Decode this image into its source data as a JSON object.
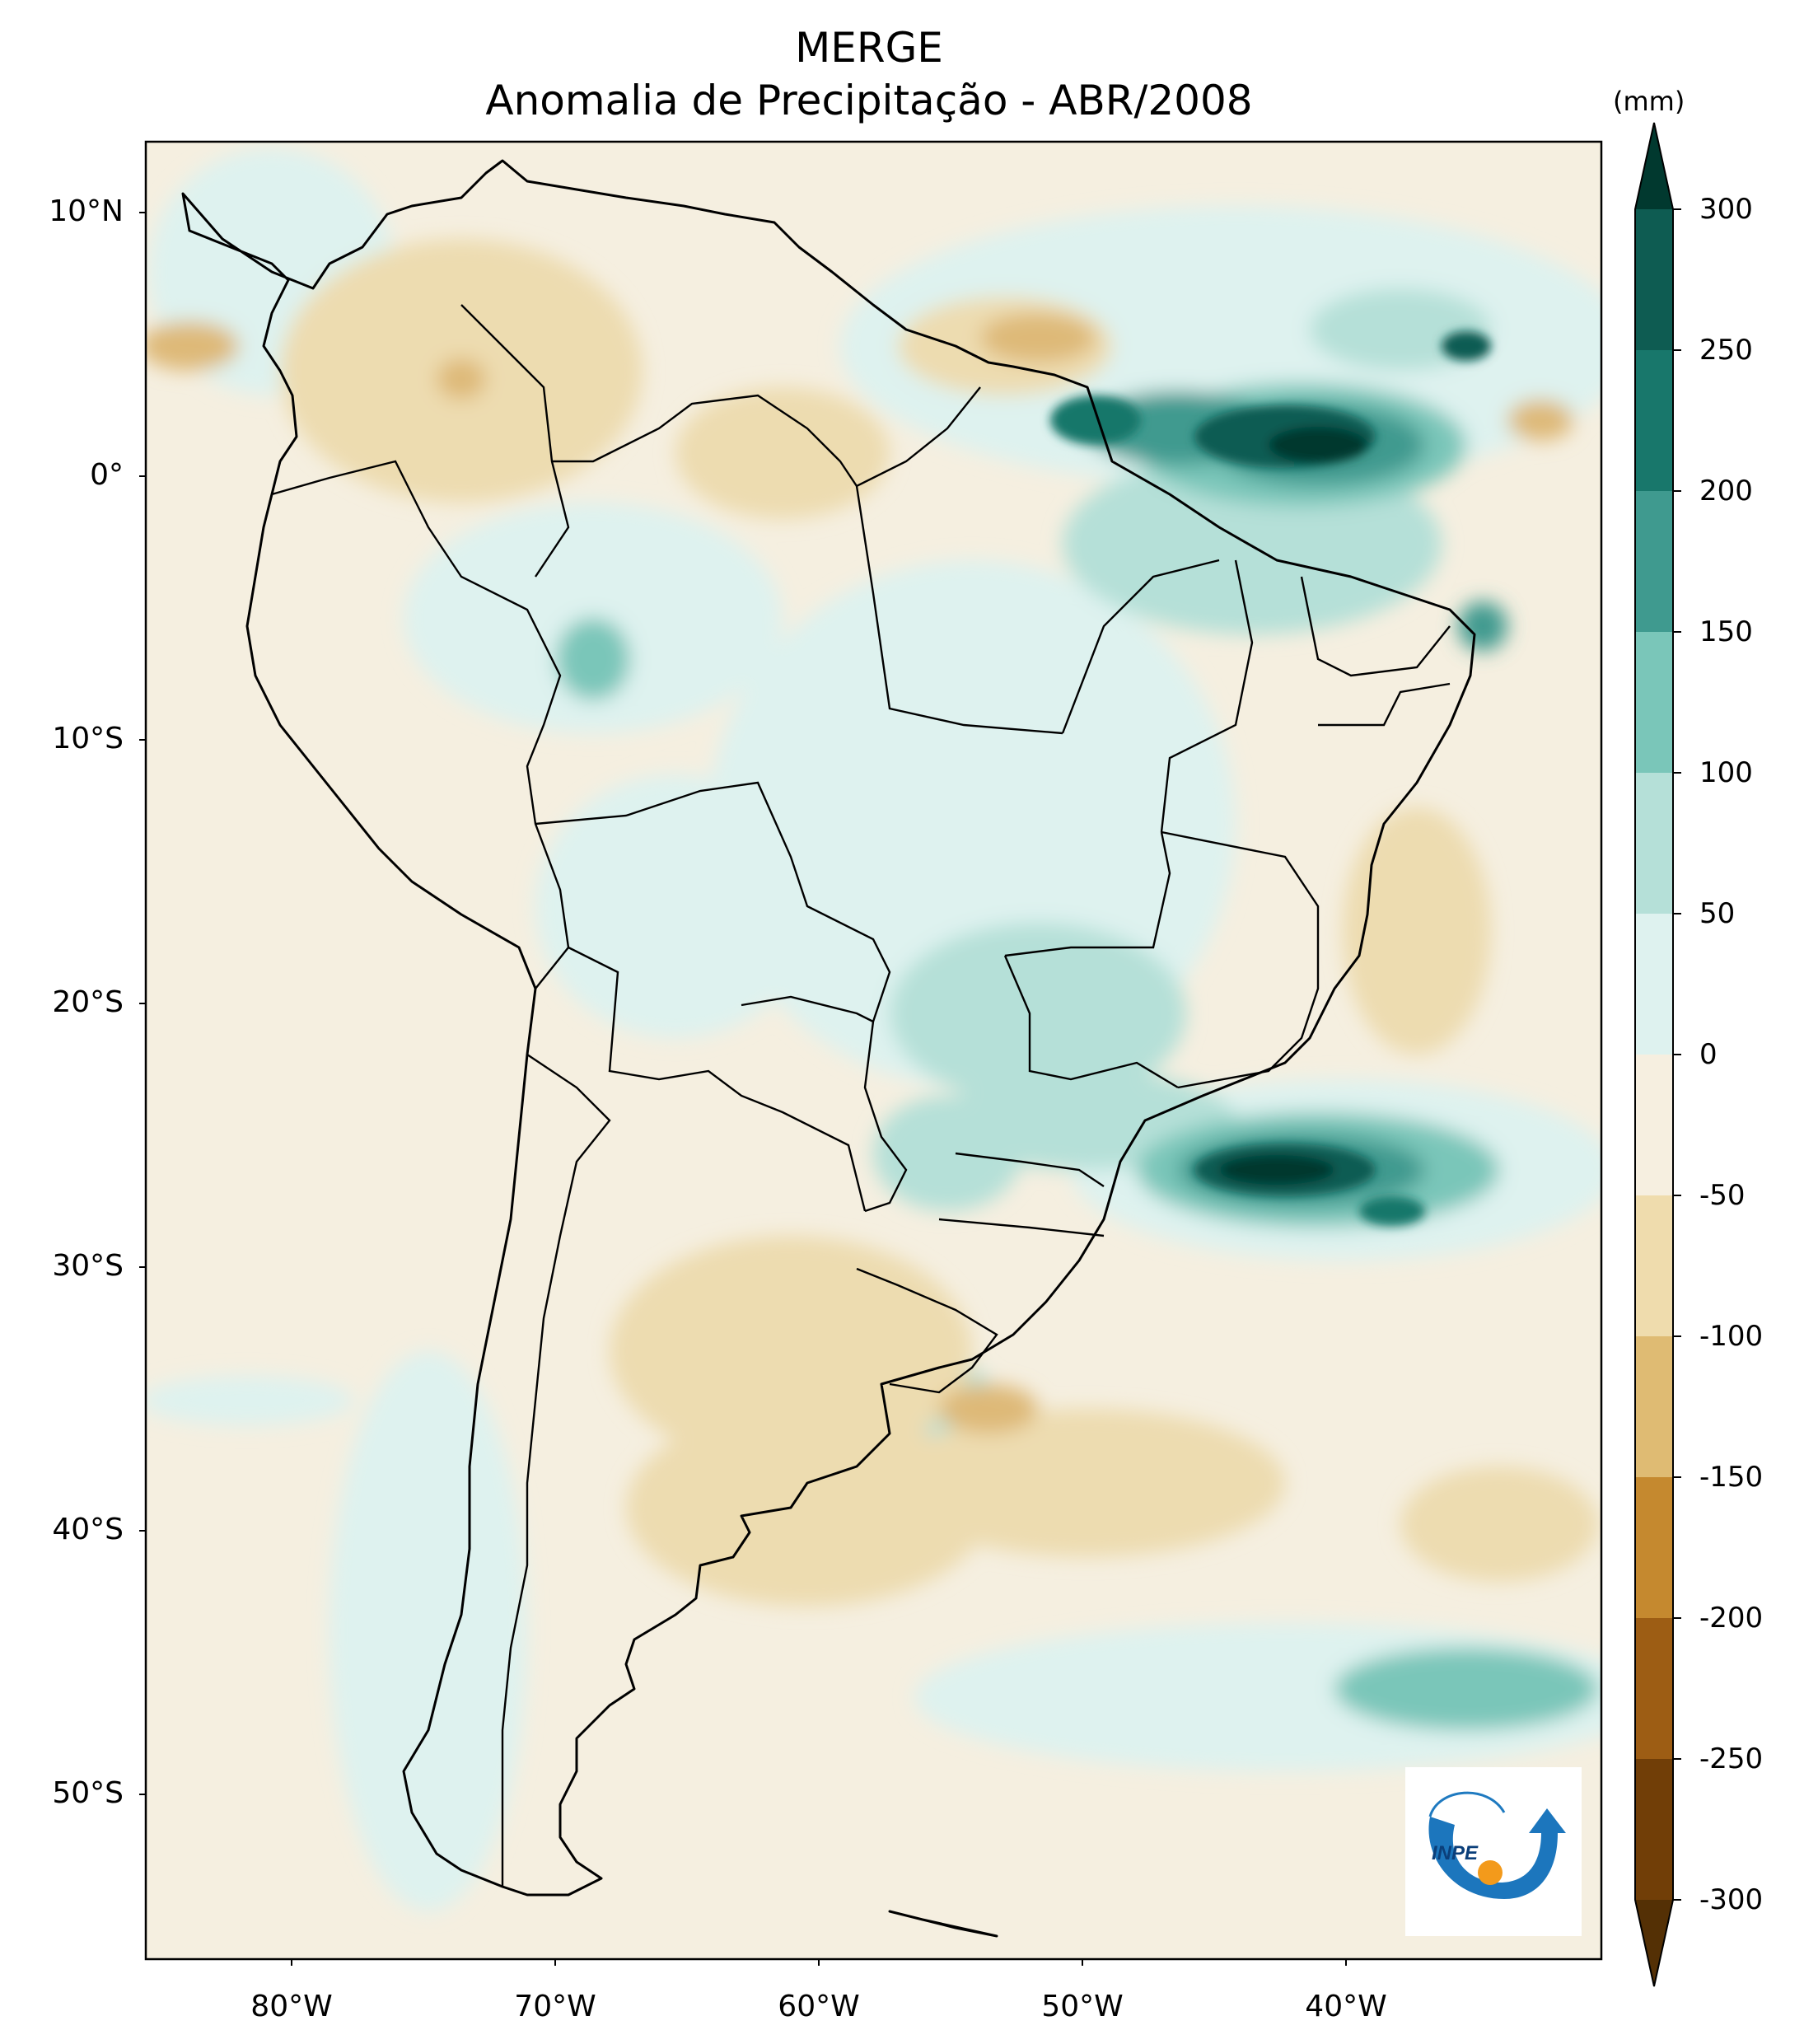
{
  "title": {
    "line1": "MERGE",
    "line2": "Anomalia de Precipitação - ABR/2008"
  },
  "axes": {
    "lat_ticks": [
      "10°N",
      "0°",
      "10°S",
      "20°S",
      "30°S",
      "40°S",
      "50°S"
    ],
    "lon_ticks": [
      "80°W",
      "70°W",
      "60°W",
      "50°W",
      "40°W"
    ]
  },
  "colorbar": {
    "unit": "(mm)",
    "ticks": [
      "300",
      "250",
      "200",
      "150",
      "100",
      "50",
      "0",
      "-50",
      "-100",
      "-150",
      "-200",
      "-250",
      "-300"
    ],
    "colors": [
      "#01392f",
      "#0e5c52",
      "#18776b",
      "#3f9a8f",
      "#7ac6b9",
      "#b5e0d8",
      "#def2ef",
      "#f6efe0",
      "#efdcad",
      "#dfbb73",
      "#c5892f",
      "#9d5d14",
      "#713e07",
      "#543005"
    ]
  },
  "logo": {
    "text": "INPE"
  },
  "colors": {
    "neutral": "#f5efe0",
    "dry1": "#eddcb0",
    "dry2": "#deb978",
    "wet1": "#def2ef",
    "wet2": "#b5e0d8",
    "wet3": "#7ac6b9",
    "wet4": "#3f9a8f",
    "wet5": "#0e5c52",
    "wet6": "#01392f"
  }
}
